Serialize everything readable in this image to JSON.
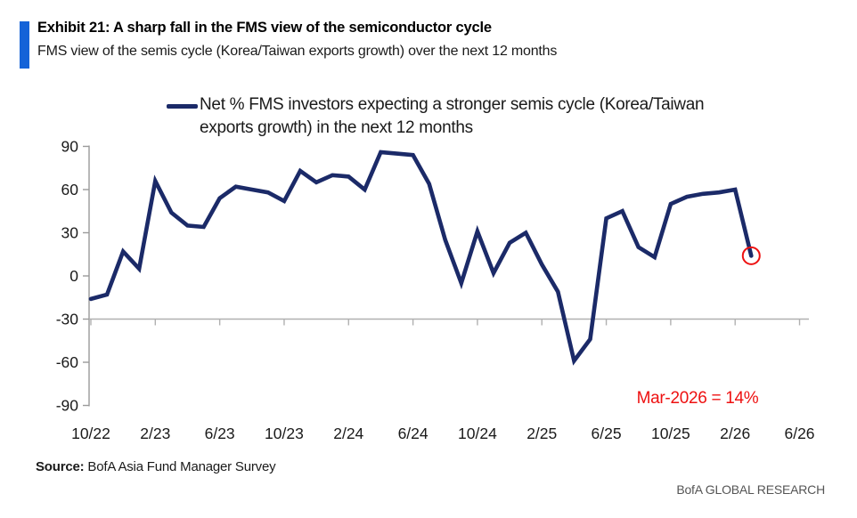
{
  "header": {
    "exhibit_title": "Exhibit 21: A sharp fall in the FMS view of the semiconductor cycle",
    "subtitle": "FMS view of the semis cycle (Korea/Taiwan exports growth) over the next 12 months"
  },
  "legend": {
    "line1": "Net % FMS investors expecting a stronger semis cycle (Korea/Taiwan",
    "line2": "exports growth)  in the next 12 months"
  },
  "chart_data": {
    "type": "line",
    "title": "",
    "series_name": "Net % FMS investors expecting a stronger semis cycle (Korea/Taiwan exports growth) in the next 12 months",
    "x": [
      "10/22",
      "11/22",
      "12/22",
      "1/23",
      "2/23",
      "3/23",
      "4/23",
      "5/23",
      "6/23",
      "7/23",
      "8/23",
      "9/23",
      "10/23",
      "11/23",
      "12/23",
      "1/24",
      "2/24",
      "3/24",
      "4/24",
      "5/24",
      "6/24",
      "7/24",
      "8/24",
      "9/24",
      "10/24",
      "11/24",
      "12/24",
      "1/25",
      "2/25",
      "3/25",
      "4/25",
      "5/25",
      "6/25",
      "7/25",
      "8/25",
      "9/25",
      "10/25",
      "11/25",
      "12/25",
      "1/26",
      "2/26",
      "3/26"
    ],
    "values": [
      -16,
      -13,
      17,
      5,
      66,
      44,
      35,
      34,
      54,
      62,
      60,
      58,
      52,
      73,
      65,
      70,
      69,
      60,
      86,
      85,
      84,
      64,
      25,
      -5,
      31,
      2,
      23,
      30,
      8,
      -11,
      -59,
      -44,
      40,
      45,
      20,
      13,
      50,
      55,
      57,
      58,
      60,
      14
    ],
    "xtick_labels": [
      "10/22",
      "2/23",
      "6/23",
      "10/23",
      "2/24",
      "6/24",
      "10/24",
      "2/25",
      "6/25",
      "10/25",
      "2/26",
      "6/26"
    ],
    "yticks": [
      90,
      60,
      30,
      0,
      -30,
      -60,
      -90
    ],
    "ylim": [
      -90,
      90
    ],
    "xlabel": "",
    "ylabel": "",
    "grid": false,
    "legend_position": "top",
    "axis_crosses_at": -30,
    "line_color": "#1b2a68",
    "axis_color": "#9a9a9a",
    "baseline_color": "#b0b0b0",
    "annotation": {
      "text": "Mar-2026 = 14%",
      "color": "#ee1111",
      "x_label": "3/26",
      "value": 14,
      "style": "circled-last-point"
    }
  },
  "footer": {
    "source_label": "Source:",
    "source_text": " BofA Asia Fund Manager Survey",
    "branding": "BofA GLOBAL RESEARCH"
  }
}
